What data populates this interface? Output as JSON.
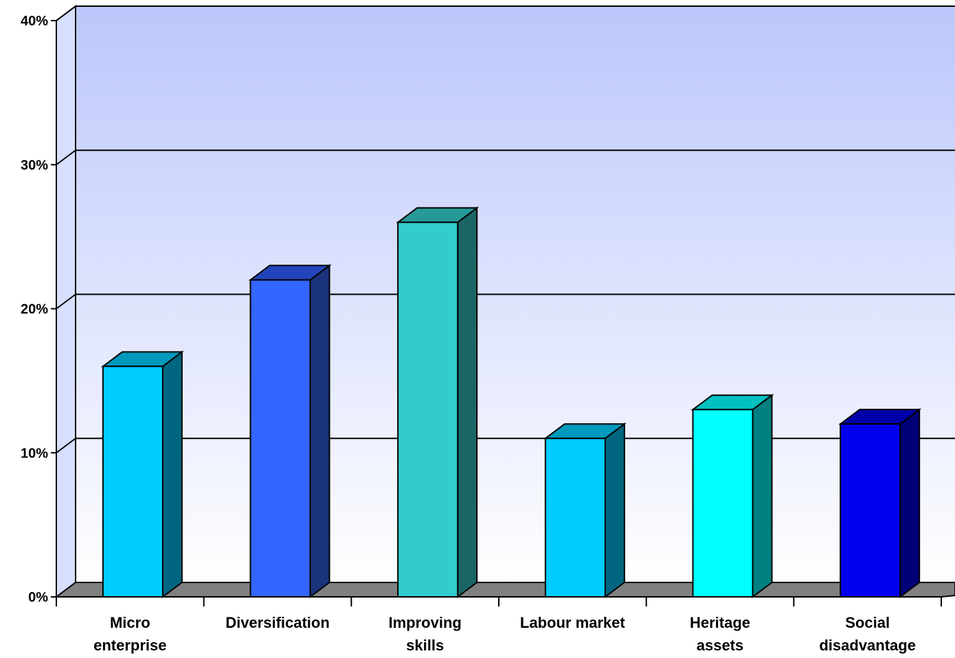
{
  "chart_data": {
    "type": "bar",
    "style": "3d-column",
    "categories": [
      [
        "Micro",
        "enterprise"
      ],
      [
        "Diversification"
      ],
      [
        "Improving",
        "skills"
      ],
      [
        "Labour market"
      ],
      [
        "Heritage",
        "assets"
      ],
      [
        "Social",
        "disadvantage"
      ]
    ],
    "values": [
      16,
      22,
      26,
      11,
      13,
      12
    ],
    "ylim": [
      0,
      40
    ],
    "yticks": [
      0,
      10,
      20,
      30,
      40
    ],
    "ytick_labels": [
      "0%",
      "10%",
      "20%",
      "30%",
      "40%"
    ],
    "grid": true,
    "background_gradient": [
      "#bcc7fb",
      "#ffffff"
    ],
    "floor_color": "#808080",
    "bar_colors": [
      {
        "front": "#00ccff",
        "top": "#0099bb",
        "side": "#006680"
      },
      {
        "front": "#3366ff",
        "top": "#2244bb",
        "side": "#1a337a"
      },
      {
        "front": "#33cccc",
        "top": "#279999",
        "side": "#1a6666"
      },
      {
        "front": "#00ccff",
        "top": "#0099bb",
        "side": "#006680"
      },
      {
        "front": "#00ffff",
        "top": "#00c0c0",
        "side": "#008080"
      },
      {
        "front": "#0000ee",
        "top": "#0000aa",
        "side": "#000077"
      }
    ]
  }
}
